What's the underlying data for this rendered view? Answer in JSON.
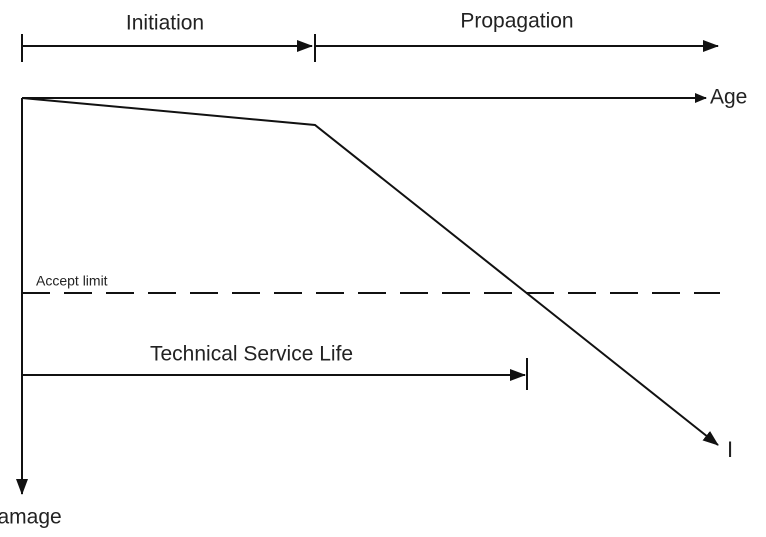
{
  "phases": {
    "initiation": "Initiation",
    "propagation": "Propagation"
  },
  "axes": {
    "x_label": "Age",
    "y_label": "Damage"
  },
  "accept_limit": "Accept limit",
  "service_life": "Technical Service Life",
  "curve_label": "I"
}
